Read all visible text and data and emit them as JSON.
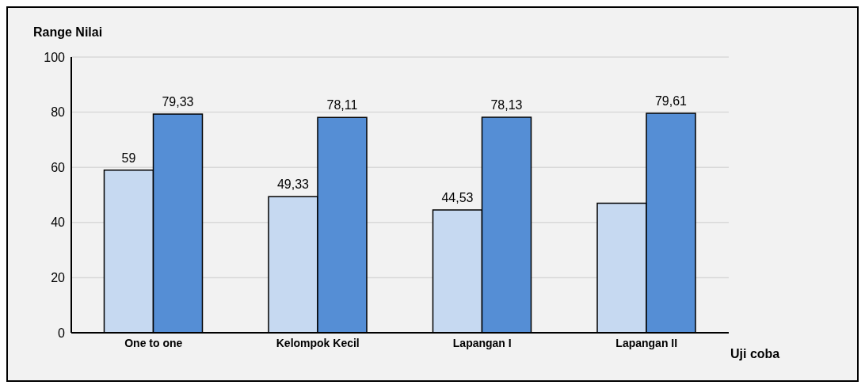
{
  "chart_data": {
    "type": "bar",
    "xlabel": "Uji coba",
    "ylabel": "Range Nilai",
    "categories": [
      "One to one",
      "Kelompok Kecil",
      "Lapangan I",
      "Lapangan II"
    ],
    "series": [
      {
        "color": "#c6d9f1",
        "values": [
          59,
          49.33,
          44.53,
          47
        ],
        "value_labels": [
          "59",
          "49,33",
          "44,53",
          null
        ]
      },
      {
        "color": "#558ed5",
        "values": [
          79.33,
          78.11,
          78.13,
          79.61
        ],
        "value_labels": [
          "79,33",
          "78,11",
          "78,13",
          "79,61"
        ]
      }
    ],
    "ylim": [
      0,
      100
    ],
    "yticks": [
      0,
      20,
      40,
      60,
      80,
      100
    ],
    "grid": "y",
    "legend": false
  }
}
